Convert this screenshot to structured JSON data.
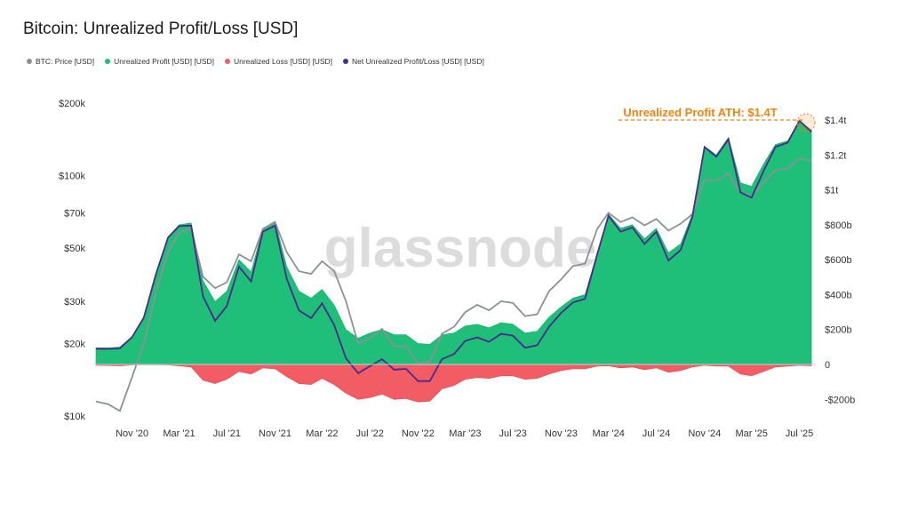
{
  "chart_data": {
    "type": "area",
    "title": "Bitcoin: Unrealized Profit/Loss [USD]",
    "watermark": "glassnode",
    "legend": [
      {
        "name": "BTC: Price [USD]",
        "color": "#8c9196"
      },
      {
        "name": "Unrealized Profit [USD] [USD]",
        "color": "#1fbf7a"
      },
      {
        "name": "Unrealized Loss [USD] [USD]",
        "color": "#f25c64"
      },
      {
        "name": "Net Unrealized Profit/Loss [USD] [USD]",
        "color": "#4a2a8a"
      }
    ],
    "x_ticks": [
      "Nov '20",
      "Mar '21",
      "Jul '21",
      "Nov '21",
      "Mar '22",
      "Jul '22",
      "Nov '22",
      "Mar '23",
      "Jul '23",
      "Nov '23",
      "Mar '24",
      "Jul '24",
      "Nov '24",
      "Mar '25",
      "Jul '25"
    ],
    "left_axis": {
      "scale": "log",
      "ticks": [
        "$10k",
        "$20k",
        "$30k",
        "$50k",
        "$70k",
        "$100k",
        "$200k"
      ],
      "values": [
        10000,
        20000,
        30000,
        50000,
        70000,
        100000,
        200000
      ],
      "range": [
        10000,
        200000
      ]
    },
    "right_axis": {
      "scale": "linear",
      "ticks": [
        "-$200b",
        "0",
        "$200b",
        "$400b",
        "$600b",
        "$800b",
        "$1t",
        "$1.2t",
        "$1.4t"
      ],
      "values": [
        -200,
        0,
        200,
        400,
        600,
        800,
        1000,
        1200,
        1400
      ],
      "unit": "billions USD",
      "range": [
        -300,
        1500
      ]
    },
    "annotation": {
      "text": "Unrealized Profit ATH: $1.4T",
      "value": 1400
    },
    "series": [
      {
        "name": "BTC: Price [USD]",
        "x": [
          "2020-08-01",
          "2020-09-01",
          "2020-10-01",
          "2020-11-01",
          "2020-12-01",
          "2021-01-01",
          "2021-02-01",
          "2021-03-01",
          "2021-04-01",
          "2021-05-01",
          "2021-06-01",
          "2021-07-01",
          "2021-08-01",
          "2021-09-01",
          "2021-10-01",
          "2021-11-01",
          "2021-12-01",
          "2022-01-01",
          "2022-02-01",
          "2022-03-01",
          "2022-04-01",
          "2022-05-01",
          "2022-06-01",
          "2022-07-01",
          "2022-08-01",
          "2022-09-01",
          "2022-10-01",
          "2022-11-01",
          "2022-12-01",
          "2023-01-01",
          "2023-02-01",
          "2023-03-01",
          "2023-04-01",
          "2023-05-01",
          "2023-06-01",
          "2023-07-01",
          "2023-08-01",
          "2023-09-01",
          "2023-10-01",
          "2023-11-01",
          "2023-12-01",
          "2024-01-01",
          "2024-02-01",
          "2024-03-01",
          "2024-04-01",
          "2024-05-01",
          "2024-06-01",
          "2024-07-01",
          "2024-08-01",
          "2024-09-01",
          "2024-10-01",
          "2024-11-01",
          "2024-12-01",
          "2025-01-01",
          "2025-02-01",
          "2025-03-01",
          "2025-04-01",
          "2025-05-01",
          "2025-06-01",
          "2025-07-01",
          "2025-08-01"
        ],
        "values": [
          11500,
          11200,
          10500,
          14500,
          20000,
          33000,
          48000,
          58000,
          60000,
          38000,
          34000,
          36000,
          47000,
          44000,
          60000,
          64000,
          48000,
          40000,
          39000,
          44000,
          40000,
          30000,
          20000,
          21000,
          23000,
          19500,
          19500,
          16500,
          16800,
          22000,
          23500,
          27000,
          29000,
          27500,
          30000,
          29500,
          26000,
          26500,
          33000,
          37000,
          42000,
          43000,
          60000,
          70000,
          64000,
          67000,
          62000,
          66000,
          59000,
          63000,
          69000,
          96000,
          95000,
          102000,
          85000,
          82000,
          94000,
          105000,
          107000,
          118000,
          115000
        ]
      },
      {
        "name": "Unrealized Profit [USD] [USD]",
        "x": [
          "2020-08-01",
          "2020-09-01",
          "2020-10-01",
          "2020-11-01",
          "2020-12-01",
          "2021-01-01",
          "2021-02-01",
          "2021-03-01",
          "2021-04-01",
          "2021-05-01",
          "2021-06-01",
          "2021-07-01",
          "2021-08-01",
          "2021-09-01",
          "2021-10-01",
          "2021-11-01",
          "2021-12-01",
          "2022-01-01",
          "2022-02-01",
          "2022-03-01",
          "2022-04-01",
          "2022-05-01",
          "2022-06-01",
          "2022-07-01",
          "2022-08-01",
          "2022-09-01",
          "2022-10-01",
          "2022-11-01",
          "2022-12-01",
          "2023-01-01",
          "2023-02-01",
          "2023-03-01",
          "2023-04-01",
          "2023-05-01",
          "2023-06-01",
          "2023-07-01",
          "2023-08-01",
          "2023-09-01",
          "2023-10-01",
          "2023-11-01",
          "2023-12-01",
          "2024-01-01",
          "2024-02-01",
          "2024-03-01",
          "2024-04-01",
          "2024-05-01",
          "2024-06-01",
          "2024-07-01",
          "2024-08-01",
          "2024-09-01",
          "2024-10-01",
          "2024-11-01",
          "2024-12-01",
          "2025-01-01",
          "2025-02-01",
          "2025-03-01",
          "2025-04-01",
          "2025-05-01",
          "2025-06-01",
          "2025-07-01",
          "2025-08-01"
        ],
        "values": [
          95,
          95,
          100,
          160,
          270,
          520,
          730,
          800,
          810,
          480,
          360,
          420,
          600,
          530,
          780,
          820,
          560,
          420,
          380,
          430,
          340,
          200,
          150,
          180,
          200,
          170,
          170,
          120,
          115,
          170,
          180,
          220,
          230,
          210,
          240,
          230,
          180,
          190,
          270,
          330,
          380,
          400,
          640,
          860,
          780,
          800,
          720,
          780,
          640,
          690,
          860,
          1250,
          1200,
          1300,
          1040,
          1020,
          1150,
          1260,
          1280,
          1400,
          1340
        ]
      },
      {
        "name": "Unrealized Loss [USD] [USD]",
        "x": [
          "2020-08-01",
          "2020-09-01",
          "2020-10-01",
          "2020-11-01",
          "2020-12-01",
          "2021-01-01",
          "2021-02-01",
          "2021-03-01",
          "2021-04-01",
          "2021-05-01",
          "2021-06-01",
          "2021-07-01",
          "2021-08-01",
          "2021-09-01",
          "2021-10-01",
          "2021-11-01",
          "2021-12-01",
          "2022-01-01",
          "2022-02-01",
          "2022-03-01",
          "2022-04-01",
          "2022-05-01",
          "2022-06-01",
          "2022-07-01",
          "2022-08-01",
          "2022-09-01",
          "2022-10-01",
          "2022-11-01",
          "2022-12-01",
          "2023-01-01",
          "2023-02-01",
          "2023-03-01",
          "2023-04-01",
          "2023-05-01",
          "2023-06-01",
          "2023-07-01",
          "2023-08-01",
          "2023-09-01",
          "2023-10-01",
          "2023-11-01",
          "2023-12-01",
          "2024-01-01",
          "2024-02-01",
          "2024-03-01",
          "2024-04-01",
          "2024-05-01",
          "2024-06-01",
          "2024-07-01",
          "2024-08-01",
          "2024-09-01",
          "2024-10-01",
          "2024-11-01",
          "2024-12-01",
          "2025-01-01",
          "2025-02-01",
          "2025-03-01",
          "2025-04-01",
          "2025-05-01",
          "2025-06-01",
          "2025-07-01",
          "2025-08-01"
        ],
        "values": [
          -5,
          -6,
          -8,
          -3,
          -2,
          -2,
          -3,
          -8,
          -15,
          -90,
          -110,
          -85,
          -40,
          -55,
          -20,
          -25,
          -70,
          -110,
          -115,
          -80,
          -115,
          -165,
          -200,
          -190,
          -170,
          -200,
          -195,
          -215,
          -210,
          -140,
          -120,
          -85,
          -75,
          -80,
          -65,
          -65,
          -85,
          -80,
          -55,
          -35,
          -25,
          -25,
          -10,
          -8,
          -20,
          -15,
          -30,
          -20,
          -45,
          -35,
          -15,
          -5,
          -10,
          -10,
          -55,
          -65,
          -40,
          -15,
          -10,
          -5,
          -8
        ]
      },
      {
        "name": "Net Unrealized Profit/Loss [USD] [USD]",
        "x": [
          "2020-08-01",
          "2020-09-01",
          "2020-10-01",
          "2020-11-01",
          "2020-12-01",
          "2021-01-01",
          "2021-02-01",
          "2021-03-01",
          "2021-04-01",
          "2021-05-01",
          "2021-06-01",
          "2021-07-01",
          "2021-08-01",
          "2021-09-01",
          "2021-10-01",
          "2021-11-01",
          "2021-12-01",
          "2022-01-01",
          "2022-02-01",
          "2022-03-01",
          "2022-04-01",
          "2022-05-01",
          "2022-06-01",
          "2022-07-01",
          "2022-08-01",
          "2022-09-01",
          "2022-10-01",
          "2022-11-01",
          "2022-12-01",
          "2023-01-01",
          "2023-02-01",
          "2023-03-01",
          "2023-04-01",
          "2023-05-01",
          "2023-06-01",
          "2023-07-01",
          "2023-08-01",
          "2023-09-01",
          "2023-10-01",
          "2023-11-01",
          "2023-12-01",
          "2024-01-01",
          "2024-02-01",
          "2024-03-01",
          "2024-04-01",
          "2024-05-01",
          "2024-06-01",
          "2024-07-01",
          "2024-08-01",
          "2024-09-01",
          "2024-10-01",
          "2024-11-01",
          "2024-12-01",
          "2025-01-01",
          "2025-02-01",
          "2025-03-01",
          "2025-04-01",
          "2025-05-01",
          "2025-06-01",
          "2025-07-01",
          "2025-08-01"
        ],
        "values": [
          90,
          89,
          92,
          157,
          268,
          518,
          727,
          792,
          795,
          390,
          250,
          335,
          560,
          475,
          760,
          795,
          490,
          310,
          265,
          350,
          225,
          35,
          -50,
          -10,
          30,
          -30,
          -25,
          -95,
          -95,
          30,
          60,
          135,
          155,
          130,
          175,
          165,
          95,
          110,
          215,
          295,
          355,
          375,
          630,
          852,
          760,
          785,
          690,
          760,
          595,
          655,
          845,
          1245,
          1190,
          1290,
          985,
          955,
          1110,
          1245,
          1270,
          1395,
          1332
        ]
      }
    ]
  }
}
